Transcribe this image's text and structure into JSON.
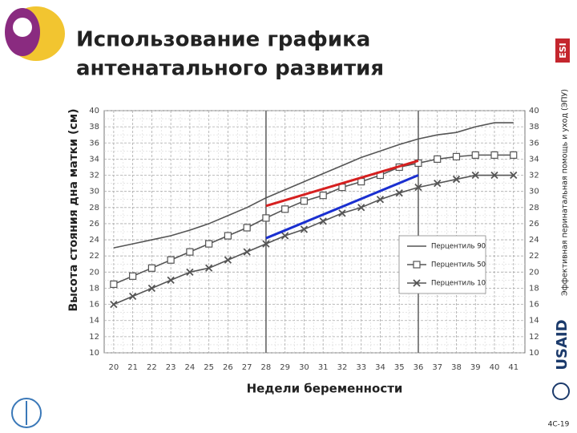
{
  "slide": {
    "title_line1": "Использование графика",
    "title_line2": "антенатального развития",
    "side_text": "Эффективная перинатальная помощь и уход (ЭПУ)",
    "logo_text": "USAID",
    "badge": "ESI",
    "page_number": "4C-19"
  },
  "chart_data": {
    "type": "line",
    "y_label": "Высота стояния дна матки (см)",
    "x_label": "Недели беременности",
    "x": [
      20,
      21,
      22,
      23,
      24,
      25,
      26,
      27,
      28,
      29,
      30,
      31,
      32,
      33,
      34,
      35,
      36,
      37,
      38,
      39,
      40,
      41
    ],
    "series": [
      {
        "name": "Перцентиль 90",
        "color": "#555555",
        "marker": "none",
        "values": [
          23,
          23.5,
          24,
          24.5,
          25.2,
          26,
          27,
          28,
          29.2,
          30.2,
          31.2,
          32.2,
          33.2,
          34.2,
          35,
          35.8,
          36.5,
          37,
          37.3,
          38,
          38.5,
          38.5
        ]
      },
      {
        "name": "Перцентиль 50",
        "color": "#555555",
        "marker": "square",
        "values": [
          18.5,
          19.5,
          20.5,
          21.5,
          22.5,
          23.5,
          24.5,
          25.5,
          26.7,
          27.8,
          28.8,
          29.5,
          30.5,
          31.2,
          32,
          33,
          33.5,
          34,
          34.3,
          34.5,
          34.5,
          34.5
        ]
      },
      {
        "name": "Перцентиль 10",
        "color": "#555555",
        "marker": "x",
        "values": [
          16,
          17,
          18,
          19,
          20,
          20.5,
          21.5,
          22.5,
          23.5,
          24.5,
          25.3,
          26.3,
          27.3,
          28,
          29,
          29.8,
          30.5,
          31,
          31.5,
          32,
          32,
          32
        ]
      }
    ],
    "trend_lines": [
      {
        "color": "#d62020",
        "x": [
          28,
          36
        ],
        "values": [
          28.2,
          33.8
        ]
      },
      {
        "color": "#1a2fd0",
        "x": [
          28,
          36
        ],
        "values": [
          24.2,
          32
        ]
      }
    ],
    "highlight_weeks": [
      28,
      36
    ],
    "xlim": [
      19.5,
      41.6
    ],
    "ylim": [
      10,
      40
    ],
    "xticks": [
      20,
      21,
      22,
      23,
      24,
      25,
      26,
      27,
      28,
      29,
      30,
      31,
      32,
      33,
      34,
      35,
      36,
      37,
      38,
      39,
      40,
      41
    ],
    "yticks": [
      10,
      12,
      14,
      16,
      18,
      20,
      22,
      24,
      26,
      28,
      30,
      32,
      34,
      36,
      38,
      40
    ],
    "grid": true
  }
}
